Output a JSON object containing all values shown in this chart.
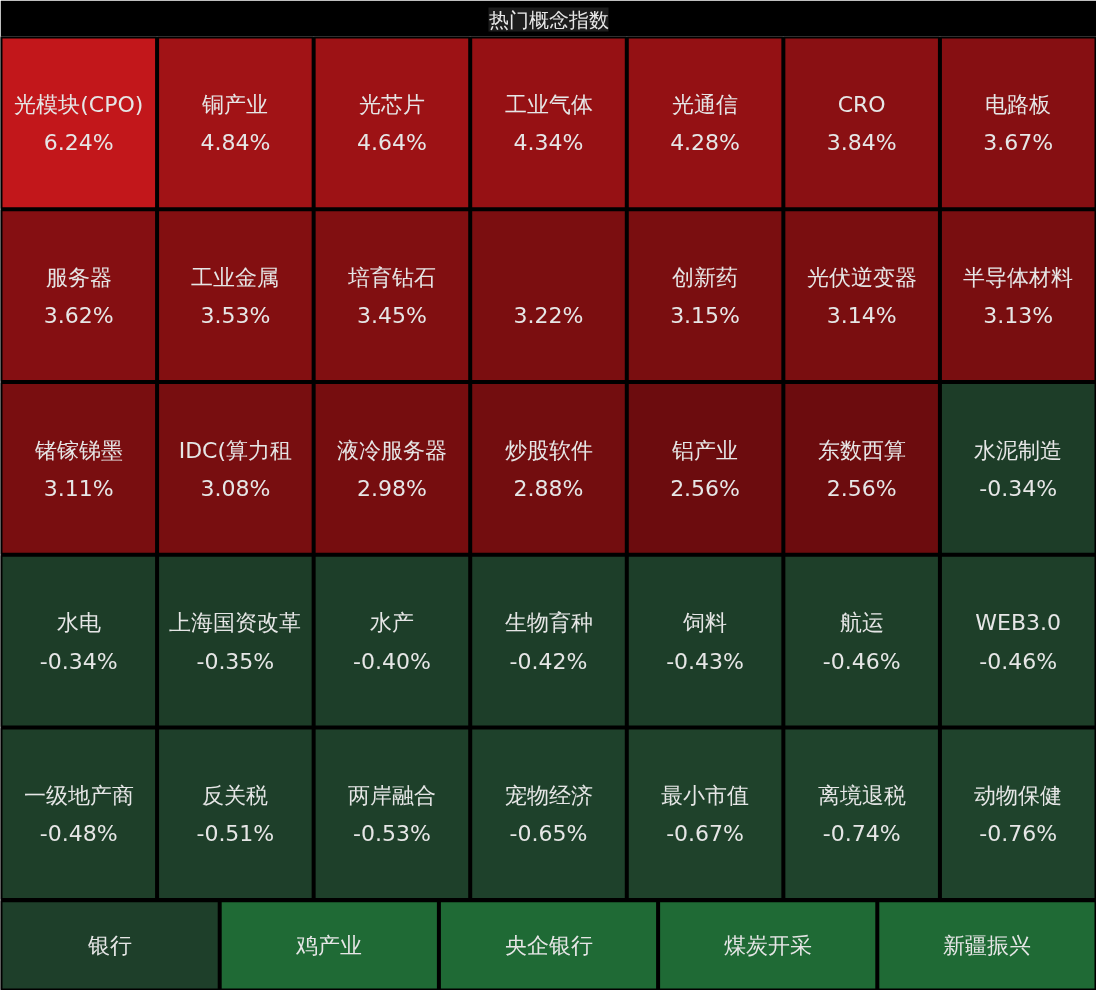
{
  "chart_data": {
    "type": "other",
    "title": "热门概念指数",
    "categories": [
      "光模块(CPO)",
      "铜产业",
      "光芯片",
      "工业气体",
      "光通信",
      "CRO",
      "电路板",
      "服务器",
      "工业金属",
      "培育钻石",
      null,
      "创新药",
      "光伏逆变器",
      "半导体材料",
      "锗镓锑墨",
      "IDC(算力租",
      "液冷服务器",
      "炒股软件",
      "铝产业",
      "东数西算",
      "水泥制造",
      "水电",
      "上海国资改革",
      "水产",
      "生物育种",
      "饲料",
      "航运",
      "WEB3.0",
      "一级地产商",
      "反关税",
      "两岸融合",
      "宠物经济",
      "最小市值",
      "离境退税",
      "动物保健",
      "银行",
      "鸡产业",
      "央企银行",
      "煤炭开采",
      "新疆振兴"
    ],
    "values": [
      6.24,
      4.84,
      4.64,
      4.34,
      4.28,
      3.84,
      3.67,
      3.62,
      3.53,
      3.45,
      3.22,
      3.15,
      3.14,
      3.13,
      3.11,
      3.08,
      2.98,
      2.88,
      2.56,
      2.56,
      -0.34,
      -0.34,
      -0.35,
      -0.4,
      -0.42,
      -0.43,
      -0.46,
      -0.46,
      -0.48,
      -0.51,
      -0.53,
      -0.65,
      -0.67,
      -0.74,
      -0.76,
      null,
      null,
      null,
      null,
      null
    ],
    "value_labels": [
      "6.24%",
      "4.84%",
      "4.64%",
      "4.34%",
      "4.28%",
      "3.84%",
      "3.67%",
      "3.62%",
      "3.53%",
      "3.45%",
      "3.22%",
      "3.15%",
      "3.14%",
      "3.13%",
      "3.11%",
      "3.08%",
      "2.98%",
      "2.88%",
      "2.56%",
      "2.56%",
      "-0.34%",
      "-0.34%",
      "-0.35%",
      "-0.40%",
      "-0.42%",
      "-0.43%",
      "-0.46%",
      "-0.46%",
      "-0.48%",
      "-0.51%",
      "-0.53%",
      "-0.65%",
      "-0.67%",
      "-0.74%",
      "-0.76%",
      null,
      null,
      null,
      null,
      null
    ],
    "colors": [
      null,
      null,
      null,
      null,
      null,
      null,
      null,
      null,
      null,
      null,
      null,
      null,
      null,
      null,
      null,
      null,
      null,
      null,
      null,
      null,
      null,
      null,
      null,
      null,
      null,
      null,
      null,
      null,
      null,
      null,
      null,
      null,
      null,
      null,
      null,
      "#1e3f2a",
      "#1f6a35",
      "#1f6a35",
      "#1f6a35",
      "#1f6a35"
    ]
  }
}
